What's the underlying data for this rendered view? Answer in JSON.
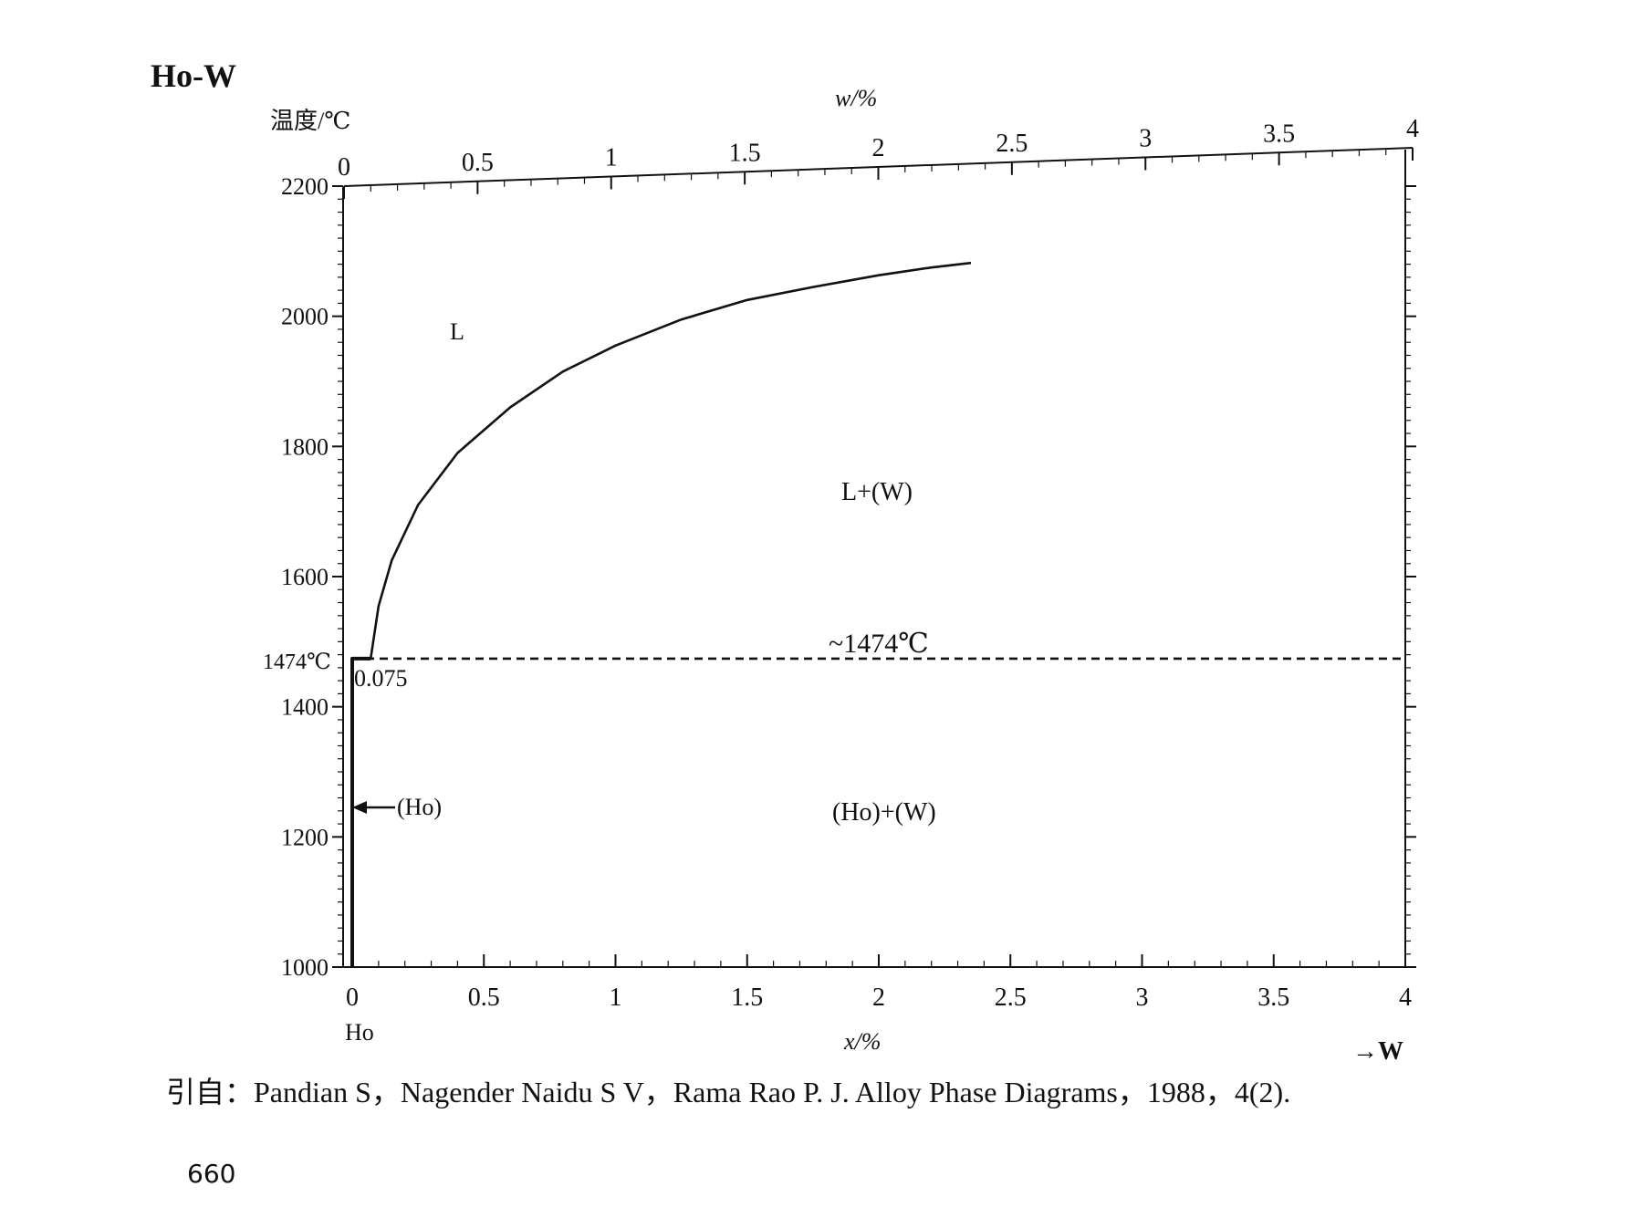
{
  "chart_data": {
    "type": "line",
    "title": "Ho-W",
    "ylabel": "温度/℃",
    "xlabel": "x/%",
    "x2label": "w/%",
    "xlim": [
      0,
      4
    ],
    "ylim": [
      1000,
      2200
    ],
    "x_ticks": [
      "0",
      "0.5",
      "1",
      "1.5",
      "2",
      "2.5",
      "3",
      "3.5",
      "4"
    ],
    "x2_ticks": [
      "0",
      "0.5",
      "1",
      "1.5",
      "2",
      "2.5",
      "3",
      "3.5",
      "4"
    ],
    "y_ticks": [
      "1000",
      "1200",
      "1400",
      "1600",
      "1800",
      "2000",
      "2200"
    ],
    "series": [
      {
        "style": "solid",
        "points": [
          [
            0.07,
            1474
          ],
          [
            0.1,
            1555
          ],
          [
            0.15,
            1625
          ],
          [
            0.25,
            1710
          ],
          [
            0.4,
            1790
          ],
          [
            0.6,
            1860
          ],
          [
            0.8,
            1915
          ],
          [
            1.0,
            1955
          ],
          [
            1.25,
            1995
          ],
          [
            1.5,
            2025
          ],
          [
            1.75,
            2045
          ],
          [
            2.0,
            2063
          ],
          [
            2.2,
            2075
          ],
          [
            2.35,
            2082
          ]
        ]
      },
      {
        "style": "dashed",
        "points": [
          [
            0.0,
            1474
          ],
          [
            4.0,
            1474
          ]
        ]
      },
      {
        "style": "solid",
        "points": [
          [
            0.0,
            1000
          ],
          [
            0.0,
            1474
          ],
          [
            0.07,
            1474
          ]
        ]
      }
    ],
    "annotations": {
      "liquid": "L",
      "two_phase": "L+(W)",
      "solid_phase": "(Ho)+(W)",
      "ho_solid": "(Ho)",
      "eutectic": "~1474℃",
      "eutectic_y": "1474℃",
      "solubility": "0.075",
      "left_element": "Ho",
      "right_element": "→W"
    },
    "eutectic_temperature": 1474,
    "solubility_limit": 0.075,
    "grid": false,
    "legend": "none"
  },
  "page": {
    "citation": "引自：Pandian S，Nagender Naidu S V，Rama Rao P. J.  Alloy Phase Diagrams，1988，4(2).",
    "page_number": "660"
  }
}
